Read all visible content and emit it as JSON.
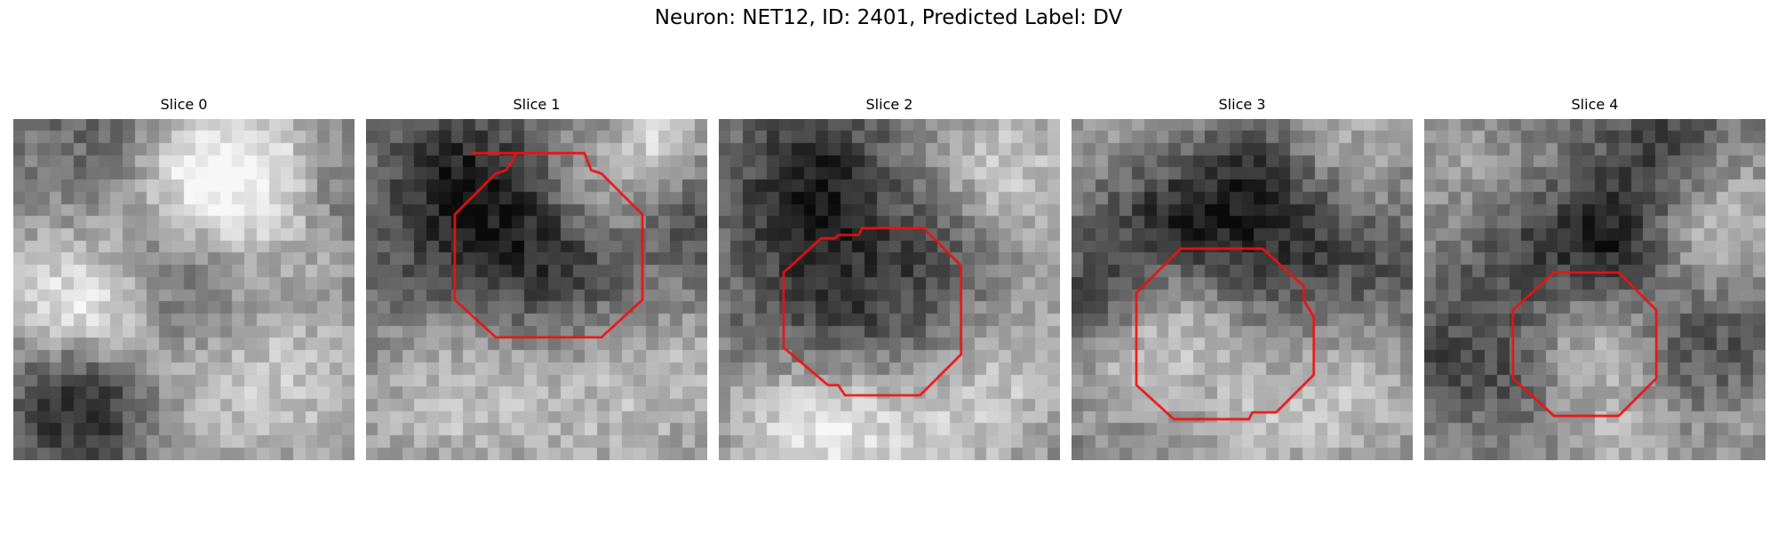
{
  "figure": {
    "title": "Neuron: NET12, ID: 2401, Predicted Label: DV",
    "roi_color": "#ee1111",
    "colormap": "gray",
    "grid_size": 28
  },
  "panels": [
    {
      "title": "Slice 0",
      "has_roi": false,
      "seed": 11,
      "blobs": [
        [
          0.52,
          0.2,
          0.16,
          0.85
        ],
        [
          0.74,
          0.16,
          0.18,
          0.7
        ],
        [
          0.14,
          0.52,
          0.15,
          0.8
        ],
        [
          0.3,
          0.62,
          0.12,
          0.4
        ],
        [
          0.2,
          0.83,
          0.14,
          -0.9
        ],
        [
          0.52,
          0.45,
          0.14,
          -0.55
        ],
        [
          0.3,
          0.08,
          0.16,
          -0.35
        ],
        [
          0.75,
          0.62,
          0.2,
          0.3
        ],
        [
          0.95,
          0.2,
          0.1,
          -0.4
        ],
        [
          0.85,
          0.85,
          0.18,
          0.35
        ],
        [
          0.55,
          0.85,
          0.15,
          0.3
        ]
      ]
    },
    {
      "title": "Slice 1",
      "has_roi": true,
      "seed": 23,
      "blobs": [
        [
          0.4,
          0.35,
          0.2,
          -0.7
        ],
        [
          0.25,
          0.15,
          0.15,
          -0.5
        ],
        [
          0.62,
          0.42,
          0.15,
          -0.35
        ],
        [
          0.7,
          0.2,
          0.14,
          0.55
        ],
        [
          0.25,
          0.8,
          0.2,
          0.55
        ],
        [
          0.7,
          0.85,
          0.2,
          0.45
        ],
        [
          0.95,
          0.3,
          0.1,
          -0.45
        ],
        [
          0.95,
          0.75,
          0.12,
          0.3
        ],
        [
          0.05,
          0.5,
          0.12,
          -0.2
        ],
        [
          0.88,
          0.05,
          0.08,
          0.65
        ]
      ]
    },
    {
      "title": "Slice 2",
      "has_roi": true,
      "seed": 37,
      "blobs": [
        [
          0.28,
          0.2,
          0.16,
          -0.85
        ],
        [
          0.45,
          0.55,
          0.18,
          -0.55
        ],
        [
          0.85,
          0.15,
          0.15,
          0.65
        ],
        [
          0.45,
          0.92,
          0.18,
          0.65
        ],
        [
          0.2,
          0.9,
          0.16,
          0.55
        ],
        [
          0.8,
          0.85,
          0.16,
          0.5
        ],
        [
          0.2,
          0.55,
          0.15,
          -0.25
        ],
        [
          0.95,
          0.6,
          0.15,
          0.3
        ],
        [
          0.7,
          0.38,
          0.12,
          -0.3
        ]
      ]
    },
    {
      "title": "Slice 3",
      "has_roi": true,
      "seed": 51,
      "blobs": [
        [
          0.3,
          0.3,
          0.16,
          -0.85
        ],
        [
          0.65,
          0.35,
          0.16,
          -0.65
        ],
        [
          0.3,
          0.6,
          0.14,
          0.6
        ],
        [
          0.12,
          0.75,
          0.12,
          0.3
        ],
        [
          0.05,
          0.55,
          0.1,
          -0.6
        ],
        [
          0.8,
          0.08,
          0.16,
          0.4
        ],
        [
          0.2,
          0.05,
          0.15,
          0.35
        ],
        [
          0.55,
          0.9,
          0.16,
          0.45
        ],
        [
          0.85,
          0.8,
          0.16,
          0.45
        ],
        [
          0.95,
          0.45,
          0.12,
          -0.3
        ],
        [
          0.55,
          0.15,
          0.1,
          -0.45
        ]
      ]
    },
    {
      "title": "Slice 4",
      "has_roi": true,
      "seed": 67,
      "blobs": [
        [
          0.55,
          0.35,
          0.12,
          -0.8
        ],
        [
          0.7,
          0.1,
          0.14,
          -0.65
        ],
        [
          0.3,
          0.45,
          0.16,
          -0.55
        ],
        [
          0.45,
          0.65,
          0.15,
          0.55
        ],
        [
          0.85,
          0.3,
          0.16,
          0.6
        ],
        [
          0.1,
          0.15,
          0.15,
          0.3
        ],
        [
          0.85,
          0.65,
          0.14,
          -0.45
        ],
        [
          0.25,
          0.75,
          0.12,
          -0.4
        ],
        [
          0.6,
          0.95,
          0.12,
          0.45
        ],
        [
          0.05,
          0.7,
          0.1,
          -0.35
        ],
        [
          0.95,
          0.9,
          0.1,
          0.25
        ]
      ]
    }
  ],
  "roi_shapes": {
    "Slice 1": [
      [
        0.31,
        0.1
      ],
      [
        0.64,
        0.1
      ],
      [
        0.66,
        0.15
      ],
      [
        0.69,
        0.16
      ],
      [
        0.81,
        0.28
      ],
      [
        0.81,
        0.53
      ],
      [
        0.69,
        0.64
      ],
      [
        0.38,
        0.64
      ],
      [
        0.26,
        0.53
      ],
      [
        0.26,
        0.28
      ],
      [
        0.38,
        0.16
      ],
      [
        0.41,
        0.15
      ],
      [
        0.43,
        0.12
      ],
      [
        0.44,
        0.1
      ]
    ],
    "Slice 2": [
      [
        0.42,
        0.32
      ],
      [
        0.6,
        0.32
      ],
      [
        0.71,
        0.43
      ],
      [
        0.71,
        0.69
      ],
      [
        0.59,
        0.81
      ],
      [
        0.37,
        0.81
      ],
      [
        0.35,
        0.78
      ],
      [
        0.32,
        0.78
      ],
      [
        0.19,
        0.67
      ],
      [
        0.19,
        0.45
      ],
      [
        0.3,
        0.35
      ],
      [
        0.34,
        0.35
      ],
      [
        0.35,
        0.34
      ],
      [
        0.41,
        0.34
      ]
    ],
    "Slice 3": [
      [
        0.32,
        0.38
      ],
      [
        0.56,
        0.38
      ],
      [
        0.68,
        0.49
      ],
      [
        0.68,
        0.53
      ],
      [
        0.71,
        0.58
      ],
      [
        0.71,
        0.75
      ],
      [
        0.6,
        0.86
      ],
      [
        0.53,
        0.86
      ],
      [
        0.52,
        0.88
      ],
      [
        0.3,
        0.88
      ],
      [
        0.19,
        0.78
      ],
      [
        0.19,
        0.51
      ],
      [
        0.32,
        0.38
      ]
    ],
    "Slice 4": [
      [
        0.38,
        0.45
      ],
      [
        0.57,
        0.45
      ],
      [
        0.68,
        0.56
      ],
      [
        0.68,
        0.76
      ],
      [
        0.57,
        0.87
      ],
      [
        0.38,
        0.87
      ],
      [
        0.26,
        0.76
      ],
      [
        0.26,
        0.56
      ]
    ]
  }
}
